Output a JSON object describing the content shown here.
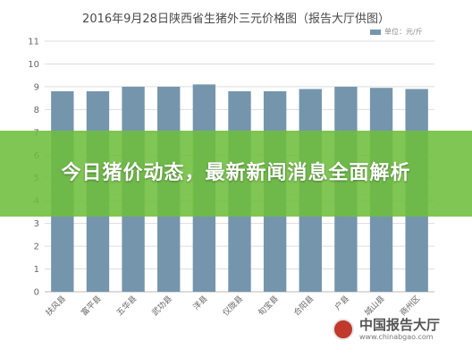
{
  "chart_data": {
    "type": "bar",
    "title": "2016年9月28日陕西省生猪外三元价格图（报告大厅供图）",
    "legend": "单位：元/斤",
    "categories": [
      "扶风县",
      "富平县",
      "五华县",
      "武功县",
      "洋县",
      "仪陇县",
      "旬宝县",
      "合阳县",
      "户县",
      "城山县",
      "商州区"
    ],
    "values": [
      8.8,
      8.8,
      9.0,
      9.0,
      9.1,
      8.8,
      8.8,
      8.9,
      9.0,
      8.95,
      8.9
    ],
    "ylim": [
      0,
      11
    ],
    "yticks": [
      0,
      1,
      2,
      3,
      4,
      5,
      6,
      7,
      8,
      9,
      10,
      11
    ],
    "grid": true,
    "bar_color": "#7595ad"
  },
  "overlay": {
    "headline": "今日猪价动态，最新新闻消息全面解析",
    "background": "#6ebe3c"
  },
  "watermark": {
    "name": "中国报告大厅",
    "url": "www.chinabgao.com"
  }
}
